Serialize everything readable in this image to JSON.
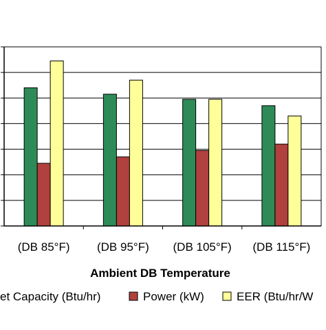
{
  "chart_data": {
    "type": "bar",
    "categories": [
      "(DB 85°F)",
      "(DB 95°F)",
      "(DB 105°F)",
      "(DB 115°F)"
    ],
    "series": [
      {
        "name": "Net Capacity (Btu/hr)",
        "values": [
          5.4,
          5.15,
          4.95,
          4.7
        ],
        "color": "#2e8b57"
      },
      {
        "name": "Power (kW)",
        "values": [
          2.45,
          2.7,
          2.95,
          3.2
        ],
        "color": "#b0413e"
      },
      {
        "name": "EER (Btu/hr/W)",
        "values": [
          6.45,
          5.7,
          4.95,
          4.3
        ],
        "color": "#ffff99"
      }
    ],
    "xlabel": "Ambient DB Temperature",
    "ylim": [
      0,
      7
    ],
    "grid": true,
    "legend_position": "bottom"
  },
  "legend": {
    "items": [
      {
        "label": "et Capacity (Btu/hr)",
        "color": "#2e8b57"
      },
      {
        "label": "Power (kW)",
        "color": "#b0413e"
      },
      {
        "label": "EER (Btu/hr/W",
        "color": "#ffff99"
      }
    ]
  }
}
